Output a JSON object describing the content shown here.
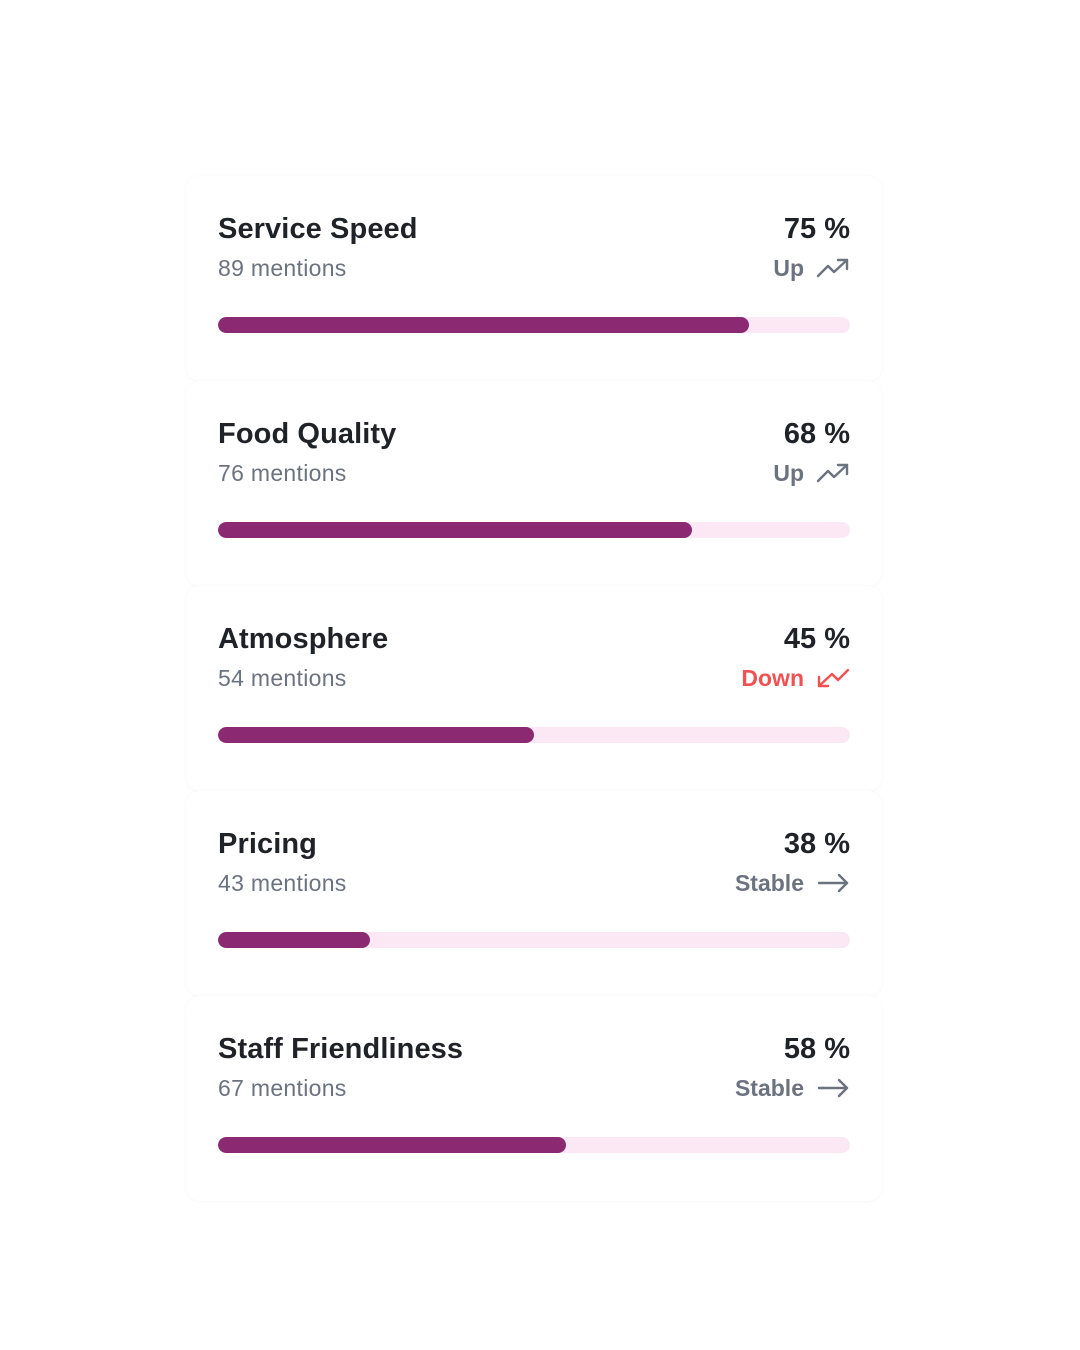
{
  "colors": {
    "bar_fill": "#8b2a73",
    "bar_track": "#fbe8f4",
    "trend_neutral": "#6b7280",
    "trend_down": "#f05252"
  },
  "metrics": [
    {
      "title": "Service Speed",
      "mentions": "89 mentions",
      "percent": "75 %",
      "value": 0.84,
      "trend": "Up",
      "trend_icon": "trending-up-icon",
      "trend_color": "#6b7280"
    },
    {
      "title": "Food Quality",
      "mentions": "76 mentions",
      "percent": "68 %",
      "value": 0.75,
      "trend": "Up",
      "trend_icon": "trending-up-icon",
      "trend_color": "#6b7280"
    },
    {
      "title": "Atmosphere",
      "mentions": "54 mentions",
      "percent": "45 %",
      "value": 0.5,
      "trend": "Down",
      "trend_icon": "trending-down-icon",
      "trend_color": "#f05252"
    },
    {
      "title": "Pricing",
      "mentions": "43 mentions",
      "percent": "38 %",
      "value": 0.24,
      "trend": "Stable",
      "trend_icon": "arrow-right-icon",
      "trend_color": "#6b7280"
    },
    {
      "title": "Staff Friendliness",
      "mentions": "67 mentions",
      "percent": "58 %",
      "value": 0.55,
      "trend": "Stable",
      "trend_icon": "arrow-right-icon",
      "trend_color": "#6b7280"
    }
  ]
}
